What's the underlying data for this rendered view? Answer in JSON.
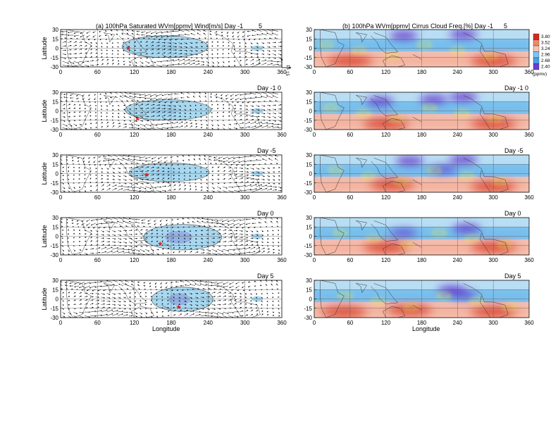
{
  "panel_a": {
    "title": "(a) 100hPa Saturated WVm[ppmv] Wind[m/s] Day -1",
    "title_extra": "5",
    "ylabel": "Latitude",
    "xlabel": "Longitude",
    "ref_vector": {
      "x_label": "15",
      "y_label": "15"
    }
  },
  "panel_b": {
    "title": "(b) 100hPa WVm[ppmv] Cirrus Cloud Freq.[%] Day -1",
    "title_extra": "5",
    "xlabel": "Longitude"
  },
  "rows": [
    {
      "day_label": ""
    },
    {
      "day_label": "Day -1 0"
    },
    {
      "day_label": "Day -5"
    },
    {
      "day_label": "Day  0"
    },
    {
      "day_label": "Day  5"
    }
  ],
  "colorbar": {
    "values": [
      "3.80",
      "3.52",
      "3.24",
      "2.96",
      "2.68",
      "2.40"
    ],
    "unit": "(ppmv)",
    "colors": [
      "#d42a1e",
      "#f08a6a",
      "#f6c3b4",
      "#7fc4ee",
      "#4aa0e8",
      "#6a3fd0"
    ]
  },
  "chart_data": [
    {
      "type": "heatmap",
      "title": "(a) 100hPa Saturated WVm[ppmv] Wind[m/s] Day -1",
      "xlabel": "Longitude",
      "ylabel": "Latitude",
      "xlim": [
        0,
        360
      ],
      "ylim": [
        -30,
        30
      ],
      "xticks": [
        "0",
        "60",
        "120",
        "180",
        "240",
        "300",
        "360"
      ],
      "yticks": [
        "30",
        "15",
        "0",
        "-15",
        "-30"
      ],
      "fill_color": "#a8d8f0",
      "dark_fill_color": "#8ea8e0",
      "rows": [
        {
          "panel": "Day -1 5",
          "saturated_region": {
            "lon": [
              100,
              240
            ],
            "lat": [
              -15,
              20
            ]
          },
          "star": {
            "lon": 110,
            "lat": 0
          }
        },
        {
          "panel": "Day -1 0",
          "saturated_region": {
            "lon": [
              105,
              245
            ],
            "lat": [
              -15,
              18
            ]
          },
          "star": {
            "lon": 125,
            "lat": -12
          }
        },
        {
          "panel": "Day -5",
          "saturated_region": {
            "lon": [
              112,
              242
            ],
            "lat": [
              -13,
              17
            ]
          },
          "star": {
            "lon": 140,
            "lat": -2
          }
        },
        {
          "panel": "Day  0",
          "saturated_region": {
            "lon": [
              135,
              262
            ],
            "lat": [
              -22,
              19
            ]
          },
          "star": {
            "lon": 162,
            "lat": -12
          }
        },
        {
          "panel": "Day  5",
          "saturated_region": {
            "lon": [
              148,
              248
            ],
            "lat": [
              -20,
              19
            ]
          },
          "star": {
            "lon": 192,
            "lat": -13
          }
        }
      ]
    },
    {
      "type": "heatmap",
      "title": "(b) 100hPa WVm[ppmv] Cirrus Cloud Freq.[%] Day -1",
      "xlabel": "Longitude",
      "xlim": [
        0,
        360
      ],
      "ylim": [
        -30,
        30
      ],
      "xticks": [
        "0",
        "60",
        "120",
        "180",
        "240",
        "300",
        "360"
      ],
      "yticks": [
        "30",
        "15",
        "0",
        "-15",
        "-30"
      ],
      "colorbar_levels": [
        2.4,
        2.68,
        2.96,
        3.24,
        3.52,
        3.8
      ],
      "colorbar_unit": "(ppmv)",
      "rows": [
        {
          "panel": "Day -1 5",
          "dry_blobs": [
            {
              "lon": 150,
              "lat": 20
            },
            {
              "lon": 250,
              "lat": 22
            }
          ],
          "moist_blobs": [
            {
              "lon": 60,
              "lat": -20
            },
            {
              "lon": 300,
              "lat": -20
            }
          ]
        },
        {
          "panel": "Day -1 0",
          "dry_blobs": [
            {
              "lon": 110,
              "lat": 15
            },
            {
              "lon": 200,
              "lat": 18
            },
            {
              "lon": 250,
              "lat": 22
            }
          ],
          "moist_blobs": [
            {
              "lon": 120,
              "lat": -20
            },
            {
              "lon": 300,
              "lat": -20
            }
          ]
        },
        {
          "panel": "Day -5",
          "dry_blobs": [
            {
              "lon": 160,
              "lat": 20
            },
            {
              "lon": 215,
              "lat": 6
            },
            {
              "lon": 250,
              "lat": 22
            }
          ],
          "moist_blobs": [
            {
              "lon": 130,
              "lat": -18
            },
            {
              "lon": 300,
              "lat": -20
            }
          ]
        },
        {
          "panel": "Day  0",
          "dry_blobs": [
            {
              "lon": 255,
              "lat": 12
            },
            {
              "lon": 150,
              "lat": 5
            }
          ],
          "moist_blobs": [
            {
              "lon": 120,
              "lat": -18
            },
            {
              "lon": 300,
              "lat": -18
            }
          ]
        },
        {
          "panel": "Day  5",
          "dry_blobs": [
            {
              "lon": 250,
              "lat": 6
            },
            {
              "lon": 230,
              "lat": 14
            }
          ],
          "moist_blobs": [
            {
              "lon": 50,
              "lat": -20
            },
            {
              "lon": 160,
              "lat": -18
            },
            {
              "lon": 300,
              "lat": -20
            }
          ]
        }
      ]
    }
  ]
}
